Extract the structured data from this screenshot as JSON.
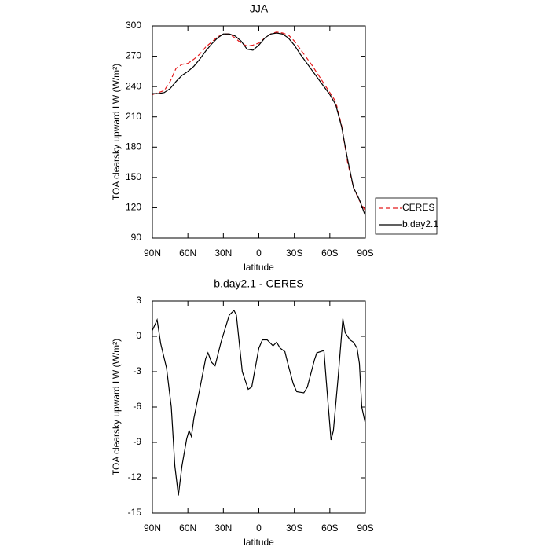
{
  "chart_data": [
    {
      "type": "line",
      "title": "JJA",
      "xlabel": "latitude",
      "ylabel": "TOA clearsky upward LW (W/m²)",
      "x": [
        90,
        85,
        80,
        75,
        70,
        65,
        60,
        55,
        50,
        45,
        40,
        35,
        30,
        25,
        20,
        15,
        10,
        5,
        0,
        -5,
        -10,
        -15,
        -20,
        -25,
        -30,
        -35,
        -40,
        -45,
        -50,
        -55,
        -60,
        -65,
        -70,
        -75,
        -80,
        -85,
        -90
      ],
      "series": [
        {
          "name": "CERES",
          "color": "#e41a1c",
          "dashed": true,
          "values": [
            232,
            234,
            236,
            245,
            258,
            262,
            263,
            267,
            272,
            279,
            284,
            289,
            292,
            292,
            288,
            283,
            280,
            281,
            283,
            288,
            292,
            294,
            293,
            291,
            285,
            277,
            269,
            261,
            252,
            243,
            234,
            225,
            201,
            165,
            140,
            127,
            117
          ]
        },
        {
          "name": "b.day2.1",
          "color": "#000000",
          "dashed": false,
          "values": [
            233,
            233,
            234,
            238,
            245,
            251,
            255,
            260,
            267,
            275,
            282,
            288,
            292,
            292,
            290,
            285,
            277,
            276,
            281,
            288,
            292,
            293,
            292,
            288,
            281,
            272,
            264,
            256,
            248,
            240,
            232,
            222,
            200,
            168,
            140,
            128,
            112
          ]
        }
      ],
      "xlim": [
        90,
        -90
      ],
      "xticks": [
        {
          "value": 90,
          "label": "90N"
        },
        {
          "value": 60,
          "label": "60N"
        },
        {
          "value": 30,
          "label": "30N"
        },
        0,
        {
          "value": -30,
          "label": "30S"
        },
        {
          "value": -60,
          "label": "60S"
        },
        {
          "value": -90,
          "label": "90S"
        }
      ],
      "ylim": [
        90,
        300
      ],
      "yticks": [
        90,
        120,
        150,
        180,
        210,
        240,
        270,
        300
      ],
      "legend": "outside-right"
    },
    {
      "type": "line",
      "title": "b.day2.1 - CERES",
      "xlabel": "latitude",
      "ylabel": "TOA clearsky upward LW (W/m²)",
      "x": [
        90,
        86,
        83,
        78,
        74,
        71,
        68,
        65,
        61,
        59,
        57,
        55,
        50,
        45,
        43,
        40,
        37,
        32,
        25,
        21,
        19,
        14,
        9,
        6,
        0,
        -3,
        -7,
        -12,
        -15,
        -18,
        -22,
        -25,
        -29,
        -32,
        -38,
        -41,
        -47,
        -49,
        -55,
        -57,
        -61,
        -63,
        -67,
        -71,
        -73,
        -77,
        -80,
        -83,
        -85,
        -87,
        -90
      ],
      "values": [
        0.5,
        1.4,
        -0.6,
        -2.7,
        -6,
        -11,
        -13.5,
        -11,
        -8.7,
        -8,
        -8.5,
        -7,
        -4.5,
        -1.9,
        -1.4,
        -2.2,
        -2.5,
        -0.5,
        1.8,
        2.2,
        1.8,
        -3,
        -4.5,
        -4.3,
        -1,
        -0.3,
        -0.3,
        -0.8,
        -0.5,
        -1,
        -1.3,
        -2.5,
        -4,
        -4.7,
        -4.8,
        -4.3,
        -2,
        -1.4,
        -1.2,
        -3.8,
        -8.8,
        -8,
        -3.5,
        1.5,
        0.3,
        -0.3,
        -0.5,
        -1,
        -2.3,
        -6,
        -7.4
      ],
      "color": "#000000",
      "xlim": [
        90,
        -90
      ],
      "xticks": [
        {
          "value": 90,
          "label": "90N"
        },
        {
          "value": 60,
          "label": "60N"
        },
        {
          "value": 30,
          "label": "30N"
        },
        0,
        {
          "value": -30,
          "label": "30S"
        },
        {
          "value": -60,
          "label": "60S"
        },
        {
          "value": -90,
          "label": "90S"
        }
      ],
      "ylim": [
        -15,
        3
      ],
      "yticks": [
        -15,
        -12,
        -9,
        -6,
        -3,
        0,
        3
      ]
    }
  ]
}
